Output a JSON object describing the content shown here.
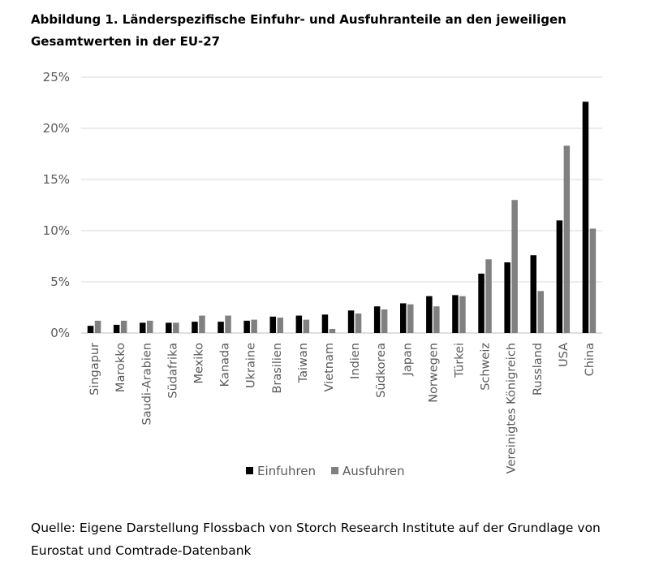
{
  "figure": {
    "title": "Abbildung 1. Länderspezifische Einfuhr- und Ausfuhranteile an den jeweiligen Gesamtwerten in der EU-27",
    "source": "Quelle: Eigene Darstellung Flossbach von Storch Research Institute auf der Grundlage von Eurostat und Comtrade-Datenbank"
  },
  "chart_data": {
    "type": "bar",
    "title": "Abbildung 1. Länderspezifische Einfuhr- und Ausfuhranteile an den jeweiligen Gesamtwerten in der EU-27",
    "xlabel": "",
    "ylabel": "",
    "categories": [
      "Singapur",
      "Marokko",
      "Saudi-Arabien",
      "Südafrika",
      "Mexiko",
      "Kanada",
      "Ukraine",
      "Brasilien",
      "Taiwan",
      "Vietnam",
      "Indien",
      "Südkorea",
      "Japan",
      "Norwegen",
      "Türkei",
      "Schweiz",
      "Vereinigtes Königreich",
      "Russland",
      "USA",
      "China"
    ],
    "series": [
      {
        "name": "Einfuhren",
        "color": "#000000",
        "values": [
          0.7,
          0.8,
          1.0,
          1.0,
          1.1,
          1.1,
          1.2,
          1.6,
          1.7,
          1.8,
          2.2,
          2.6,
          2.9,
          3.6,
          3.7,
          5.8,
          6.9,
          7.6,
          11.0,
          22.6
        ]
      },
      {
        "name": "Ausfuhren",
        "color": "#808080",
        "values": [
          1.2,
          1.2,
          1.2,
          1.0,
          1.7,
          1.7,
          1.3,
          1.5,
          1.3,
          0.4,
          1.9,
          2.3,
          2.8,
          2.6,
          3.6,
          7.2,
          13.0,
          4.1,
          18.3,
          10.2
        ]
      }
    ],
    "ylim": [
      0,
      25
    ],
    "yticks": [
      0,
      5,
      10,
      15,
      20,
      25
    ],
    "ytick_labels": [
      "0%",
      "5%",
      "10%",
      "15%",
      "20%",
      "25%"
    ],
    "grid": true,
    "legend_position": "bottom"
  }
}
